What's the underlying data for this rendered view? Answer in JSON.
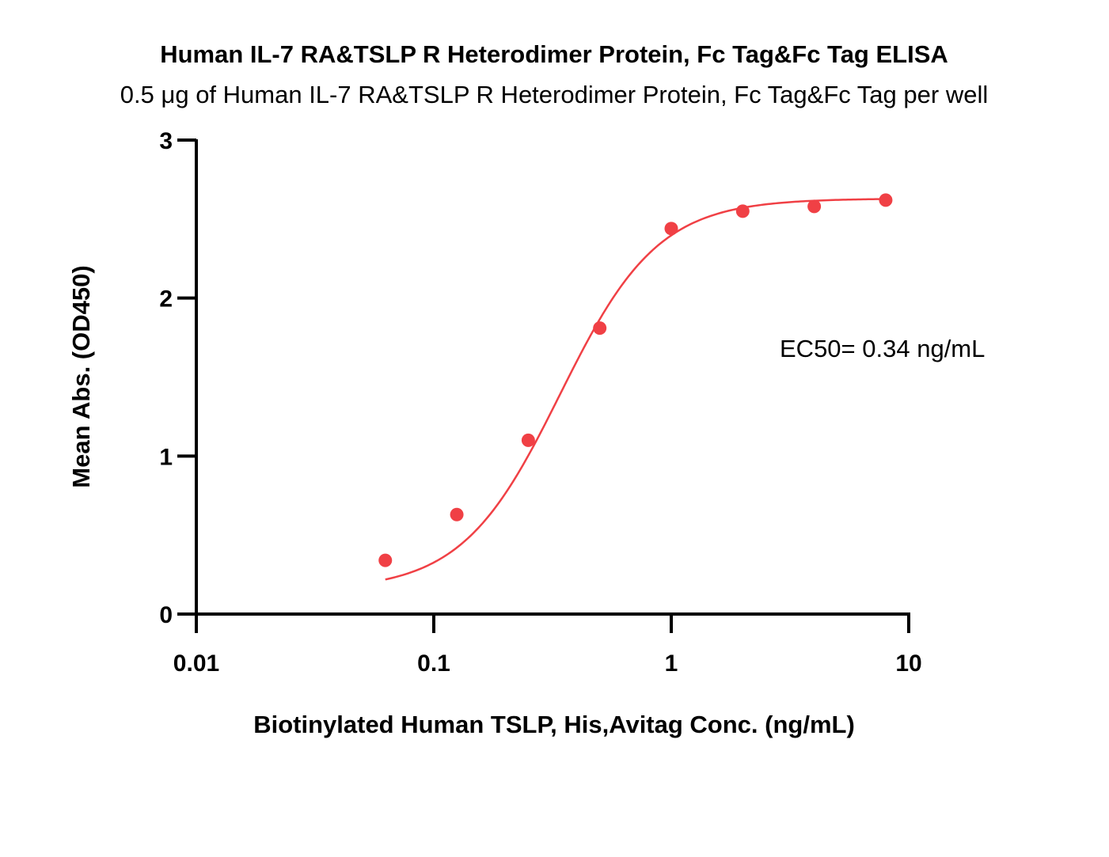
{
  "chart_data": {
    "type": "scatter",
    "title": "Human IL-7 RA&TSLP R Heterodimer Protein, Fc Tag&Fc Tag ELISA",
    "subtitle": "0.5 μg of Human IL-7 RA&TSLP R Heterodimer Protein, Fc Tag&Fc Tag per well",
    "xlabel": "Biotinylated Human TSLP, His,Avitag Conc. (ng/mL)",
    "ylabel": "Mean Abs. (OD450)",
    "x_scale": "log",
    "xlim": [
      0.01,
      10
    ],
    "ylim": [
      0,
      3
    ],
    "x_ticks": [
      0.01,
      0.1,
      1,
      10
    ],
    "x_tick_labels": [
      "0.01",
      "0.1",
      "1",
      "10"
    ],
    "y_ticks": [
      0,
      1,
      2,
      3
    ],
    "y_tick_labels": [
      "0",
      "1",
      "2",
      "3"
    ],
    "grid": false,
    "series": [
      {
        "color": "#f04045",
        "x": [
          0.0625,
          0.125,
          0.25,
          0.5,
          1,
          2,
          4,
          8
        ],
        "y": [
          0.34,
          0.63,
          1.1,
          1.81,
          2.44,
          2.55,
          2.58,
          2.62
        ]
      }
    ],
    "fit": {
      "type": "4PL",
      "bottom": 0.15,
      "top": 2.63,
      "ec50": 0.34,
      "hill": 2.1,
      "color": "#f04045"
    },
    "annotations": [
      {
        "text": "EC50= 0.34 ng/mL"
      }
    ]
  }
}
